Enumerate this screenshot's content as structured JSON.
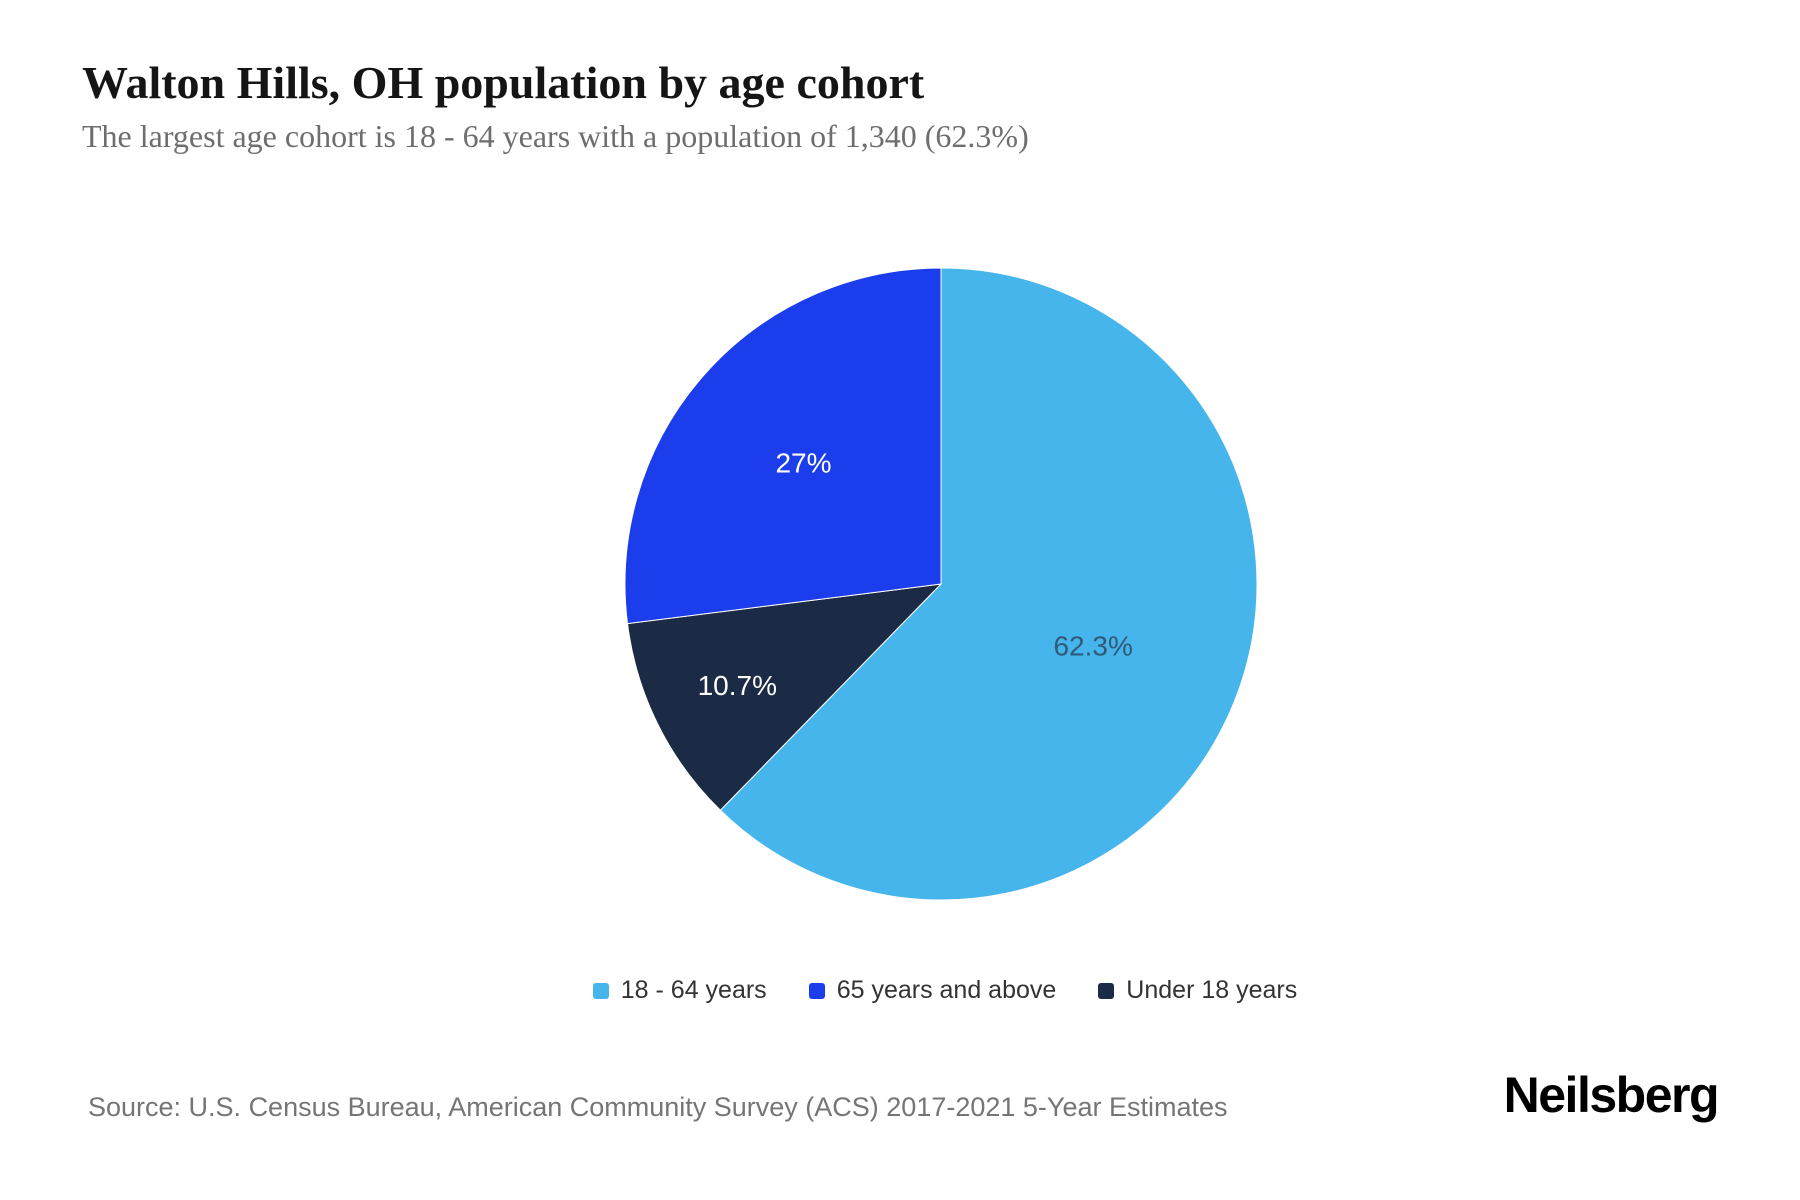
{
  "header": {
    "title": "Walton Hills, OH population by age cohort",
    "subtitle": "The largest age cohort is 18 - 64 years with a population of 1,340 (62.3%)"
  },
  "chart_data": {
    "type": "pie",
    "title": "Walton Hills, OH population by age cohort",
    "subtitle": "The largest age cohort is 18 - 64 years with a population of 1,340 (62.3%)",
    "legend_position": "bottom",
    "start_angle_deg": 0,
    "direction": "clockwise",
    "slices": [
      {
        "label": "18 - 64 years",
        "value": 62.3,
        "pct_label": "62.3%",
        "color": "#45b5ec",
        "label_color": "#315a78"
      },
      {
        "label": "65 years and above",
        "value": 27.0,
        "pct_label": "27%",
        "color": "#1c3deb",
        "label_color": "#ffffff"
      },
      {
        "label": "Under 18 years",
        "value": 10.7,
        "pct_label": "10.7%",
        "color": "#1c2b45",
        "label_color": "#ffffff"
      }
    ]
  },
  "footer": {
    "source": "Source: U.S. Census Bureau, American Community Survey (ACS) 2017-2021 5-Year Estimates",
    "brand": "Neilsberg"
  }
}
